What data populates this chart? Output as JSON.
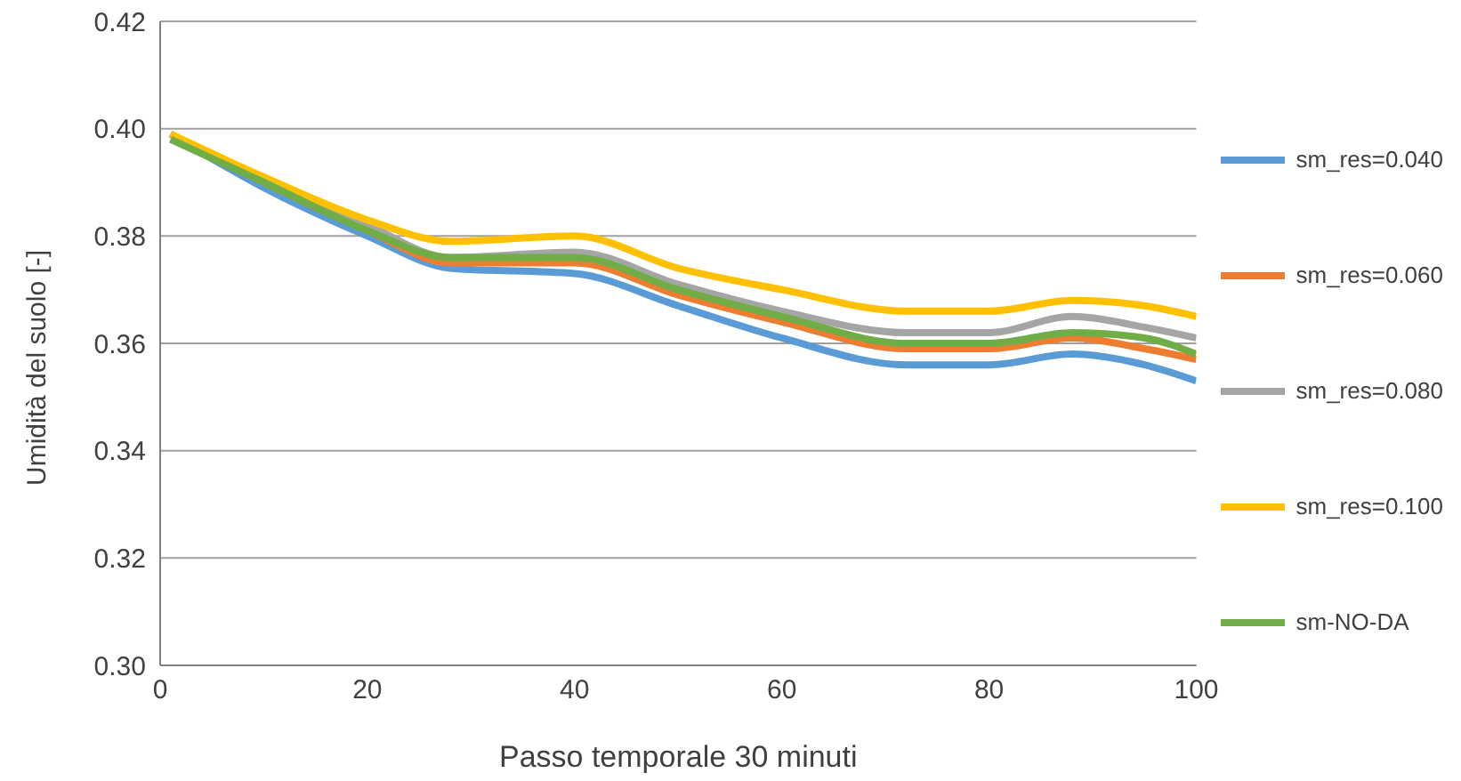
{
  "chart_data": {
    "type": "line",
    "xlabel": "Passo temporale 30 minuti",
    "ylabel": "Umidità del suolo [-]",
    "x": [
      1,
      10,
      20,
      28,
      40,
      50,
      60,
      72,
      80,
      88,
      95,
      100
    ],
    "series": [
      {
        "name": "sm_res=0.040",
        "color": "#5b9bd5",
        "values": [
          0.399,
          0.389,
          0.38,
          0.374,
          0.373,
          0.367,
          0.361,
          0.356,
          0.356,
          0.358,
          0.356,
          0.353
        ]
      },
      {
        "name": "sm_res=0.060",
        "color": "#ed7d31",
        "values": [
          0.399,
          0.39,
          0.381,
          0.375,
          0.375,
          0.369,
          0.364,
          0.359,
          0.359,
          0.361,
          0.359,
          0.357
        ]
      },
      {
        "name": "sm_res=0.080",
        "color": "#a5a5a5",
        "values": [
          0.399,
          0.39,
          0.382,
          0.376,
          0.377,
          0.371,
          0.366,
          0.362,
          0.362,
          0.365,
          0.363,
          0.361
        ]
      },
      {
        "name": "sm_res=0.100",
        "color": "#ffc000",
        "values": [
          0.399,
          0.391,
          0.383,
          0.379,
          0.38,
          0.374,
          0.37,
          0.366,
          0.366,
          0.368,
          0.367,
          0.365
        ]
      },
      {
        "name": "sm-NO-DA",
        "color": "#70ad47",
        "values": [
          0.398,
          0.39,
          0.381,
          0.376,
          0.376,
          0.37,
          0.365,
          0.36,
          0.36,
          0.362,
          0.361,
          0.358
        ]
      }
    ],
    "xlim": [
      0,
      100
    ],
    "xticks": [
      0,
      20,
      40,
      60,
      80,
      100
    ],
    "ylim": [
      0.3,
      0.42
    ],
    "yticks": [
      {
        "value": 0.3,
        "label": "0.30"
      },
      0.32,
      0.34,
      0.36,
      0.38,
      {
        "value": 0.4,
        "label": "0.40"
      },
      0.42
    ],
    "grid": "y",
    "legend": "right",
    "marker": "none",
    "line_style": "solid"
  }
}
